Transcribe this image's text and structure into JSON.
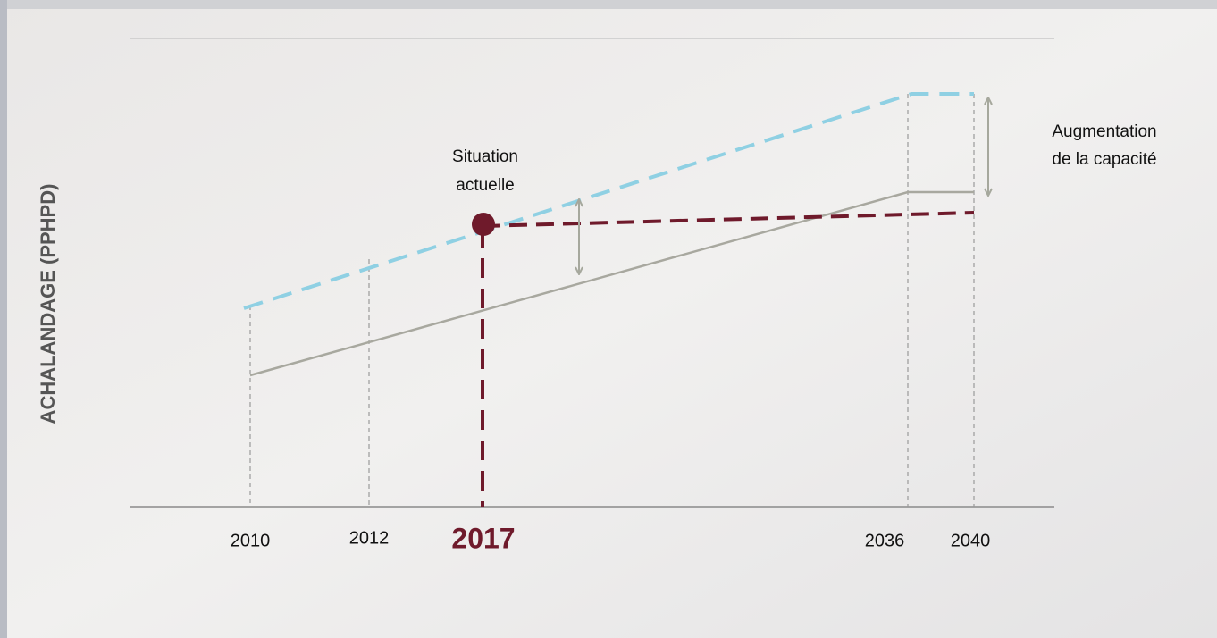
{
  "y_axis_label": "ACHALANDAGE (PPHPD)",
  "years": [
    "2010",
    "2012",
    "2036",
    "2040"
  ],
  "current_year": "2017",
  "annotations": {
    "current_situation": [
      "Situation",
      "actuelle"
    ],
    "capacity_increase": [
      "Augmentation",
      "de la capacité"
    ]
  }
}
